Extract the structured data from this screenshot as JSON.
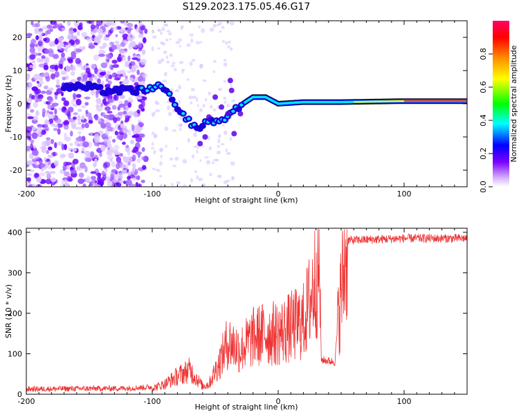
{
  "title": "S129.2023.175.05.46.G17",
  "chart_data": [
    {
      "type": "heatmap",
      "xlabel": "Height of straight line (km)",
      "ylabel": "Frequency (Hz)",
      "xlim": [
        -200,
        150
      ],
      "ylim": [
        -25,
        25
      ],
      "xticks": [
        -200,
        -100,
        0,
        100
      ],
      "yticks": [
        -20,
        -10,
        0,
        10,
        20
      ],
      "colorbar": {
        "label": "Normalized spectral amplitude",
        "range": [
          0,
          1
        ],
        "ticks": [
          "0.0",
          "0.2",
          "0.4",
          "0.6",
          "0.8"
        ],
        "colormap": [
          "#ffffff",
          "#7b00ff",
          "#0000ff",
          "#00ffff",
          "#00ff00",
          "#ffff00",
          "#ff8800",
          "#ff0000",
          "#ff0066"
        ]
      },
      "ridge": [
        {
          "x": -170,
          "y": 5
        },
        {
          "x": -150,
          "y": 5
        },
        {
          "x": -140,
          "y": 4
        },
        {
          "x": -120,
          "y": 4
        },
        {
          "x": -105,
          "y": 4
        },
        {
          "x": -95,
          "y": 5
        },
        {
          "x": -85,
          "y": 2
        },
        {
          "x": -80,
          "y": -2
        },
        {
          "x": -70,
          "y": -5
        },
        {
          "x": -65,
          "y": -8
        },
        {
          "x": -55,
          "y": -5
        },
        {
          "x": -45,
          "y": -5
        },
        {
          "x": -35,
          "y": -2
        },
        {
          "x": -28,
          "y": 0
        },
        {
          "x": -20,
          "y": 2
        },
        {
          "x": -10,
          "y": 2
        },
        {
          "x": 0,
          "y": 0
        },
        {
          "x": 20,
          "y": 0.5
        },
        {
          "x": 50,
          "y": 0.5
        },
        {
          "x": 100,
          "y": 0.8
        },
        {
          "x": 150,
          "y": 0.8
        }
      ]
    },
    {
      "type": "line",
      "xlabel": "Height of straight line (km)",
      "ylabel": "SNR (10 * v/v)",
      "xlim": [
        -200,
        150
      ],
      "ylim": [
        0,
        410
      ],
      "xticks": [
        -200,
        -100,
        0,
        100
      ],
      "yticks": [
        0,
        100,
        200,
        300,
        400
      ],
      "color": "#ee3333",
      "series_profile": [
        {
          "x": -200,
          "y": 10
        },
        {
          "x": -120,
          "y": 12
        },
        {
          "x": -100,
          "y": 15
        },
        {
          "x": -90,
          "y": 25
        },
        {
          "x": -80,
          "y": 45
        },
        {
          "x": -70,
          "y": 60
        },
        {
          "x": -60,
          "y": 20
        },
        {
          "x": -55,
          "y": 25
        },
        {
          "x": -45,
          "y": 90
        },
        {
          "x": -40,
          "y": 130
        },
        {
          "x": -30,
          "y": 110
        },
        {
          "x": -20,
          "y": 140
        },
        {
          "x": -10,
          "y": 150
        },
        {
          "x": 0,
          "y": 150
        },
        {
          "x": 10,
          "y": 165
        },
        {
          "x": 20,
          "y": 180
        },
        {
          "x": 25,
          "y": 230
        },
        {
          "x": 30,
          "y": 290
        },
        {
          "x": 33,
          "y": 310
        },
        {
          "x": 34,
          "y": 85
        },
        {
          "x": 45,
          "y": 80
        },
        {
          "x": 48,
          "y": 200
        },
        {
          "x": 52,
          "y": 300
        },
        {
          "x": 55,
          "y": 380
        },
        {
          "x": 100,
          "y": 385
        },
        {
          "x": 150,
          "y": 385
        }
      ]
    }
  ]
}
